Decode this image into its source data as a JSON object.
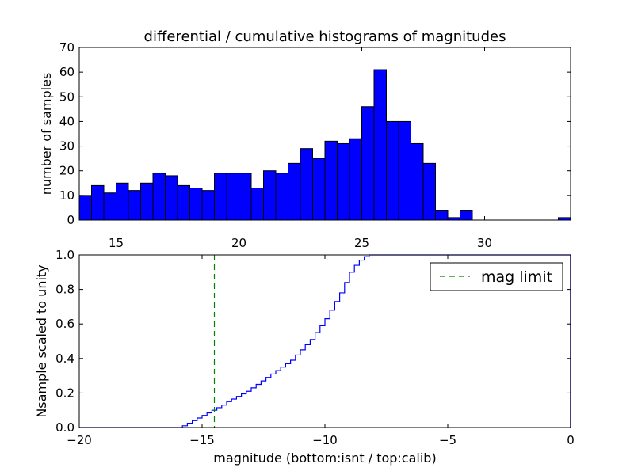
{
  "chart_data": [
    {
      "type": "bar",
      "title": "differential / cumulative histograms of magnitudes",
      "xlabel": "",
      "ylabel": "number of samples",
      "xlim": [
        13.5,
        33.5
      ],
      "ylim": [
        0,
        70
      ],
      "xticks": [
        15,
        20,
        25,
        30
      ],
      "yticks": [
        0,
        10,
        20,
        30,
        40,
        50,
        60,
        70
      ],
      "bin_start": 13.5,
      "bin_width": 0.5,
      "values": [
        10,
        14,
        11,
        15,
        12,
        15,
        19,
        18,
        14,
        13,
        12,
        19,
        19,
        19,
        13,
        20,
        19,
        23,
        29,
        25,
        32,
        31,
        33,
        46,
        61,
        40,
        40,
        31,
        23,
        4,
        1,
        4,
        0,
        0,
        0,
        0,
        0,
        0,
        0,
        1
      ],
      "color": "#0000ff"
    },
    {
      "type": "line",
      "title": "",
      "xlabel": "magnitude (bottom:isnt / top:calib)",
      "ylabel": "Nsample scaled to unity",
      "xlim": [
        -20,
        0
      ],
      "ylim": [
        0,
        1.0
      ],
      "xticks": [
        -20,
        -15,
        -10,
        -5,
        0
      ],
      "yticks": [
        0.0,
        0.2,
        0.4,
        0.6,
        0.8,
        1.0
      ],
      "series": [
        {
          "name": "",
          "style": "step",
          "color": "#0000ff",
          "x": [
            -20,
            -15.8,
            -15.6,
            -15.4,
            -15.2,
            -15.0,
            -14.8,
            -14.6,
            -14.4,
            -14.2,
            -14.0,
            -13.8,
            -13.6,
            -13.4,
            -13.2,
            -13.0,
            -12.8,
            -12.6,
            -12.4,
            -12.2,
            -12.0,
            -11.8,
            -11.6,
            -11.4,
            -11.2,
            -11.0,
            -10.8,
            -10.6,
            -10.4,
            -10.2,
            -10.0,
            -9.8,
            -9.6,
            -9.4,
            -9.2,
            -9.0,
            -8.8,
            -8.6,
            -8.4,
            -8.2,
            -8.0,
            0
          ],
          "y": [
            0.0,
            0.01,
            0.025,
            0.04,
            0.055,
            0.07,
            0.085,
            0.1,
            0.115,
            0.13,
            0.15,
            0.165,
            0.18,
            0.195,
            0.21,
            0.23,
            0.25,
            0.27,
            0.29,
            0.31,
            0.33,
            0.35,
            0.37,
            0.39,
            0.42,
            0.45,
            0.48,
            0.51,
            0.55,
            0.59,
            0.63,
            0.68,
            0.73,
            0.78,
            0.84,
            0.9,
            0.94,
            0.97,
            0.99,
            1.0,
            1.0,
            1.0
          ]
        }
      ],
      "vline": {
        "x": -14.5,
        "color": "#008000",
        "label": "mag limit"
      },
      "legend": {
        "position": "top-right",
        "entries": [
          "mag limit"
        ]
      }
    }
  ]
}
